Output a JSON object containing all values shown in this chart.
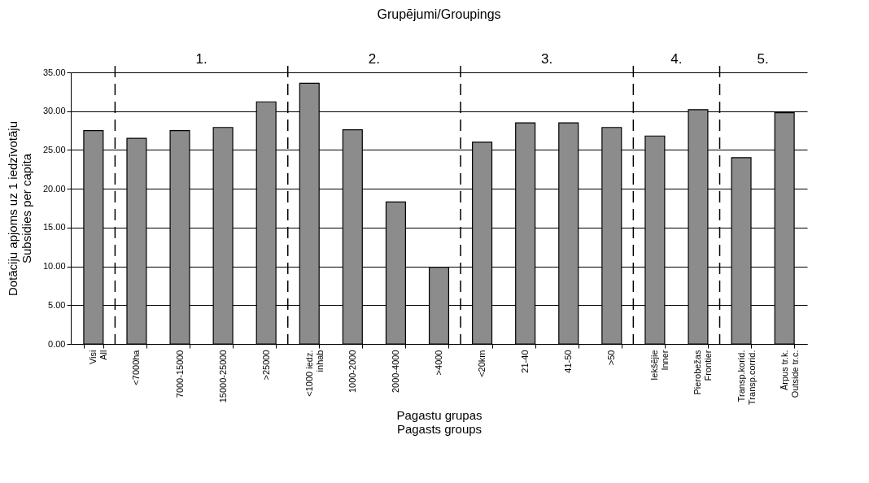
{
  "chart_data": {
    "type": "bar",
    "title": "Grupējumi/Groupings",
    "xlabel": "Pagastu grupas\nPagasts groups",
    "ylabel": "Dotāciju apjoms uz 1 iedzīvotāju\nSubsidies per capita",
    "categories": [
      "Visi\nAll",
      "<7000ha",
      "7000-15000",
      "15000-25000",
      ">25000",
      "<1000 iedz.\ninhab",
      "1000-2000",
      "2000-4000",
      ">4000",
      "<20km",
      "21-40",
      "41-50",
      ">50",
      "Iekšējie\nInner",
      "Pierobežas\nFrontier",
      "Transp.korid.\nTransp.corrid.",
      "Ārpus tr.k.\nOutside tr.c."
    ],
    "values": [
      27.5,
      26.5,
      27.5,
      27.9,
      31.2,
      33.6,
      27.6,
      18.3,
      9.9,
      26.0,
      28.5,
      28.5,
      27.9,
      26.8,
      30.2,
      24.0,
      29.8
    ],
    "color": "#8c8c8c",
    "ylim": [
      0,
      35
    ],
    "yticks": [
      {
        "value": 0,
        "label": "0.00"
      },
      {
        "value": 5,
        "label": "5.00"
      },
      {
        "value": 10,
        "label": "10.00"
      },
      {
        "value": 15,
        "label": "15.00"
      },
      {
        "value": 20,
        "label": "20.00"
      },
      {
        "value": 25,
        "label": "25.00"
      },
      {
        "value": 30,
        "label": "30.00"
      },
      {
        "value": 35,
        "label": "35.00"
      }
    ],
    "grid": "y",
    "annotations": [
      "1.",
      "2.",
      "3.",
      "4.",
      "5."
    ]
  }
}
